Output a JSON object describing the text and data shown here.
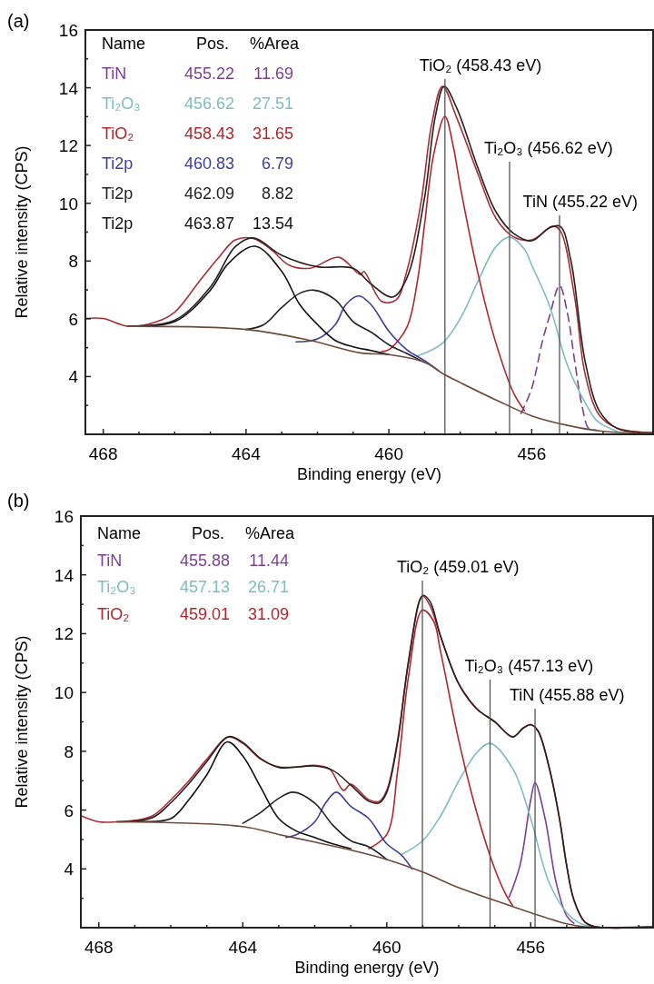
{
  "chart_data": [
    {
      "type": "line",
      "title": "(a)",
      "xlabel": "Binding energy (eV)",
      "ylabel": "Relative intensity (CPS)",
      "xlim": [
        468.5,
        452.6
      ],
      "ylim": [
        2,
        16
      ],
      "xticks": [
        468,
        {
          "value": 467,
          "label": null
        },
        {
          "value": 466,
          "label": null
        },
        {
          "value": 465,
          "label": null
        },
        464,
        {
          "value": 463,
          "label": null
        },
        {
          "value": 462,
          "label": null
        },
        {
          "value": 461,
          "label": null
        },
        460,
        {
          "value": 459,
          "label": null
        },
        {
          "value": 458,
          "label": null
        },
        {
          "value": 457,
          "label": null
        },
        456,
        {
          "value": 455,
          "label": null
        },
        {
          "value": 454,
          "label": null
        },
        {
          "value": 453,
          "label": null
        }
      ],
      "yticks": [
        {
          "value": 3,
          "label": null
        },
        4,
        {
          "value": 5,
          "label": null
        },
        6,
        {
          "value": 7,
          "label": null
        },
        8,
        {
          "value": 9,
          "label": null
        },
        10,
        {
          "value": 11,
          "label": null
        },
        12,
        {
          "value": 13,
          "label": null
        },
        14,
        {
          "value": 15,
          "label": null
        },
        16
      ],
      "legend": "top left",
      "series": [
        {
          "name": "TiN",
          "color": "#7b3f95",
          "line_style": "dashed",
          "x": [
            456.3,
            456,
            455.7,
            455.5,
            455.22,
            455,
            454.8,
            454.6,
            454.4,
            454.2
          ],
          "values": [
            2.72,
            3.59,
            5.22,
            6.09,
            7.15,
            6.2,
            4.57,
            3.05,
            2.2,
            2.15
          ]
        },
        {
          "name": "Ti₂O₃",
          "color": "#7fbcbc",
          "x": [
            459.2,
            458.5,
            458,
            457.5,
            457,
            456.62,
            456.2,
            456,
            455.5,
            455,
            454.5,
            454.2,
            454,
            453.6
          ],
          "values": [
            4.71,
            5.15,
            6.01,
            7.31,
            8.5,
            8.83,
            8.4,
            7.86,
            6.45,
            4.39,
            3.09,
            2.5,
            2.32,
            2.1
          ]
        },
        {
          "name": "TiO₂",
          "color": "#b0262c",
          "x": [
            460.2,
            460,
            459.5,
            459.2,
            459,
            458.75,
            458.43,
            458.2,
            458,
            457.5,
            457,
            456.5,
            456.2
          ],
          "values": [
            4.87,
            4.93,
            5.69,
            7.31,
            9.27,
            11.66,
            13.01,
            11.99,
            10.58,
            7.54,
            5.15,
            3.41,
            2.82
          ]
        },
        {
          "name": "Ti2p",
          "color": "#3d3d9e",
          "x": [
            462.6,
            462,
            461.5,
            461.2,
            460.84,
            460.5,
            460,
            459.5,
            459,
            458.6
          ],
          "values": [
            5.2,
            5.3,
            5.8,
            6.5,
            6.79,
            6.49,
            5.57,
            4.93,
            4.55,
            4.2
          ]
        },
        {
          "name": "Ti2p",
          "color": "#222222",
          "x": [
            464,
            463.5,
            463,
            462.5,
            462.1,
            461.5,
            461,
            460.5,
            460,
            459.5,
            459
          ],
          "values": [
            5.63,
            5.8,
            6.39,
            6.88,
            6.99,
            6.66,
            5.9,
            5.54,
            5.1,
            4.8,
            4.49
          ]
        },
        {
          "name": "Ti2p",
          "color": "#111111",
          "x": [
            467.3,
            466,
            465,
            464.5,
            463.75,
            463,
            462.5,
            462,
            461.5,
            461,
            460.5,
            460
          ],
          "values": [
            5.74,
            5.9,
            6.99,
            7.91,
            8.51,
            7.64,
            6.5,
            5.8,
            5.25,
            5.03,
            4.9,
            4.76
          ]
        },
        {
          "color": "#a3303a",
          "x": [
            468.5,
            468,
            467.3,
            466.5,
            466,
            465.3,
            464.8,
            464.3,
            463.8,
            463.3,
            462.8,
            462.2,
            461.4,
            460.8,
            460.7,
            460.2,
            459.8,
            459.5,
            459.1,
            458.8,
            458.5,
            458.1,
            457.5,
            457,
            456.5,
            456,
            455.4,
            455.2,
            454.8,
            454.5,
            454.1,
            453.6,
            452.6
          ],
          "values": [
            6.01,
            6.01,
            5.74,
            5.9,
            6.23,
            7.31,
            8.07,
            8.73,
            8.78,
            8.4,
            7.86,
            7.75,
            8.13,
            7.53,
            7.64,
            6.6,
            6.65,
            7.64,
            10.03,
            12.74,
            14.05,
            12.96,
            11,
            9.48,
            8.83,
            8.73,
            9.21,
            9.05,
            6.77,
            4.06,
            2.65,
            2.21,
            2.05
          ]
        },
        {
          "color": "#2a1f1f",
          "x": [
            467.3,
            466,
            465,
            464.3,
            463.8,
            463,
            462,
            461,
            460.5,
            459.9,
            459.5,
            459,
            458.7,
            458.45,
            458.1,
            457.5,
            457,
            456.5,
            456,
            455.5,
            455.2,
            454.9,
            454.5,
            454.1,
            453.6,
            452.6
          ],
          "values": [
            5.74,
            5.95,
            7.1,
            8.5,
            8.8,
            8.2,
            7.8,
            7.75,
            7.2,
            6.75,
            7.4,
            10.2,
            13,
            14.05,
            13.3,
            11.2,
            9.7,
            8.95,
            8.7,
            9.15,
            9.2,
            8,
            4.5,
            2.8,
            2.2,
            2.05
          ]
        },
        {
          "color": "#6e4a3a",
          "x": [
            467.3,
            464,
            462.2,
            460.8,
            460,
            459,
            458.5,
            458,
            457,
            456,
            455,
            454,
            453,
            452.6
          ],
          "values": [
            5.74,
            5.63,
            5.25,
            4.82,
            4.76,
            4.49,
            4.11,
            3.79,
            3.19,
            2.64,
            2.31,
            2.1,
            2.05,
            2.05
          ]
        }
      ],
      "ref_lines": [
        {
          "axis": "x",
          "value": 458.43,
          "color": "#555555",
          "label": "TiO₂ (458.43 eV)"
        },
        {
          "axis": "x",
          "value": 456.62,
          "color": "#555555",
          "label": "Ti₂O₃ (456.62 eV)"
        },
        {
          "axis": "x",
          "value": 455.22,
          "color": "#555555",
          "label": "TiN (455.22 eV)"
        }
      ],
      "annotations": [
        "Name",
        "Pos.",
        "%Area",
        "455.22",
        "11.69",
        "456.62",
        "27.51",
        "458.43",
        "31.65",
        "460.83",
        "6.79",
        "462.09",
        "8.82",
        "463.87",
        "13.54"
      ]
    },
    {
      "type": "line",
      "title": "(b)",
      "xlabel": "Binding energy (eV)",
      "ylabel": "Relative intensity (CPS)",
      "xlim": [
        468.5,
        452.6
      ],
      "ylim": [
        2,
        16
      ],
      "xticks": [
        468,
        {
          "value": 467,
          "label": null
        },
        {
          "value": 466,
          "label": null
        },
        {
          "value": 465,
          "label": null
        },
        464,
        {
          "value": 463,
          "label": null
        },
        {
          "value": 462,
          "label": null
        },
        {
          "value": 461,
          "label": null
        },
        460,
        {
          "value": 459,
          "label": null
        },
        {
          "value": 458,
          "label": null
        },
        {
          "value": 457,
          "label": null
        },
        456,
        {
          "value": 455,
          "label": null
        },
        {
          "value": 454,
          "label": null
        },
        {
          "value": 453,
          "label": null
        }
      ],
      "yticks": [
        {
          "value": 3,
          "label": null
        },
        4,
        {
          "value": 5,
          "label": null
        },
        6,
        {
          "value": 7,
          "label": null
        },
        8,
        {
          "value": 9,
          "label": null
        },
        10,
        {
          "value": 11,
          "label": null
        },
        12,
        {
          "value": 13,
          "label": null
        },
        14,
        {
          "value": 15,
          "label": null
        },
        16
      ],
      "legend": "top left",
      "series": [
        {
          "name": "TiN",
          "color": "#7b3f95",
          "x": [
            456.6,
            456.3,
            456,
            455.88,
            455.6,
            455.3,
            455,
            454.8
          ],
          "values": [
            3.04,
            4.11,
            6.35,
            6.93,
            5.71,
            3.57,
            2.4,
            2.15
          ]
        },
        {
          "name": "Ti₂O₃",
          "color": "#7fbcbc",
          "x": [
            459.6,
            459,
            458.5,
            458,
            457.5,
            457.13,
            456.5,
            456,
            455.5,
            455,
            454.6,
            454.2
          ],
          "values": [
            4.48,
            4.96,
            5.81,
            6.99,
            7.95,
            8.27,
            7.41,
            5.71,
            3.57,
            2.51,
            2.13,
            2.03
          ]
        },
        {
          "name": "TiO₂",
          "color": "#b0262c",
          "x": [
            460.5,
            460,
            459.7,
            459.4,
            459.01,
            458.7,
            458.5,
            458,
            457.5,
            457,
            456.7,
            456.5
          ],
          "values": [
            4.69,
            5.17,
            7.31,
            10.51,
            12.8,
            12.43,
            11.36,
            8.37,
            5.92,
            4,
            3.15,
            2.75
          ]
        },
        {
          "color": "#3d3d9e",
          "x": [
            462.8,
            462.5,
            462,
            461.7,
            461.4,
            461,
            460.5,
            460,
            459.6,
            459.3
          ],
          "values": [
            5.07,
            5.17,
            5.6,
            6.24,
            6.61,
            6.13,
            5.71,
            4.85,
            4.48,
            4
          ]
        },
        {
          "color": "#222222",
          "x": [
            464,
            463.5,
            463,
            462.6,
            462,
            461.5,
            461,
            460.5,
            460
          ],
          "values": [
            5.55,
            5.92,
            6.4,
            6.61,
            6.24,
            5.49,
            4.96,
            4.75,
            4.32
          ]
        },
        {
          "color": "#111111",
          "x": [
            467,
            466,
            465.5,
            465,
            464.43,
            464,
            463.5,
            463,
            462.5,
            462,
            461.5,
            461
          ],
          "values": [
            5.62,
            5.71,
            6.35,
            7.2,
            8.32,
            7.84,
            6.77,
            5.71,
            5.28,
            5.07,
            4.85,
            4.69
          ]
        },
        {
          "color": "#a3303a",
          "x": [
            468.5,
            468,
            467.5,
            467,
            466.5,
            466,
            465.5,
            465,
            464.4,
            464,
            463.5,
            463,
            462.5,
            462,
            461.6,
            461.2,
            461,
            460.5,
            460.2,
            460,
            459.7,
            459.4,
            459.1,
            459,
            458.8,
            458.5,
            458,
            457.5,
            457,
            456.5,
            456.2,
            456,
            455.8,
            455.5,
            455.2,
            455,
            454.8,
            454.5,
            454.2,
            452.6
          ],
          "values": [
            5.81,
            5.6,
            5.6,
            5.65,
            5.81,
            6.35,
            6.99,
            7.73,
            8.48,
            8.27,
            7.73,
            7.47,
            7.47,
            7.52,
            7.41,
            6.67,
            6.88,
            6.35,
            6.3,
            6.67,
            8.37,
            11.04,
            13.07,
            13.28,
            12.96,
            11.89,
            10.29,
            9.44,
            9.01,
            8.48,
            8.8,
            8.91,
            8.69,
            7.52,
            5.71,
            4.11,
            2.93,
            2.19,
            2.03,
            2.03
          ]
        },
        {
          "color": "#2a1f1f",
          "x": [
            467.5,
            466.5,
            466,
            465.5,
            465,
            464.4,
            464,
            463.5,
            463,
            462,
            461.5,
            461,
            460.5,
            460.2,
            460,
            459.7,
            459.4,
            459,
            458.8,
            458.5,
            458,
            457.5,
            457,
            456.5,
            456.2,
            456,
            455.8,
            455.5,
            455.2,
            455,
            454.8,
            454.5,
            454.2,
            452.6
          ],
          "values": [
            5.6,
            5.75,
            6.25,
            6.9,
            7.65,
            8.5,
            8.3,
            7.75,
            7.45,
            7.5,
            7.35,
            6.85,
            6.3,
            6.25,
            6.6,
            8.3,
            11,
            13.3,
            13.1,
            11.9,
            10.3,
            9.45,
            9,
            8.5,
            8.8,
            8.9,
            8.7,
            7.5,
            5.7,
            4.1,
            2.95,
            2.2,
            2.03,
            2.03
          ]
        },
        {
          "color": "#6e4a3a",
          "x": [
            467.5,
            464,
            463,
            462,
            461,
            460,
            459,
            458,
            457,
            456,
            455,
            454.5,
            452.6
          ],
          "values": [
            5.6,
            5.44,
            5.17,
            4.91,
            4.64,
            4.32,
            3.89,
            3.36,
            2.93,
            2.51,
            2.13,
            2.03,
            2.03
          ]
        }
      ],
      "ref_lines": [
        {
          "axis": "x",
          "value": 459.01,
          "color": "#555555",
          "label": "TiO₂ (459.01 eV)"
        },
        {
          "axis": "x",
          "value": 457.13,
          "color": "#555555",
          "label": "Ti₂O₃ (457.13 eV)"
        },
        {
          "axis": "x",
          "value": 455.88,
          "color": "#555555",
          "label": "TiN (455.88 eV)"
        }
      ],
      "annotations": [
        "Name",
        "Pos.",
        "%Area",
        "455.88",
        "11.44",
        "457.13",
        "26.71",
        "459.01",
        "31.09"
      ]
    }
  ]
}
